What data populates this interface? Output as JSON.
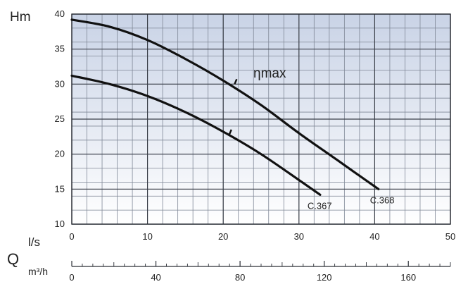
{
  "chart_data": {
    "type": "line",
    "ylabel": "Hm",
    "x_unit_primary": "l/s",
    "x_quantity_symbol": "Q",
    "x_unit_secondary": "m³/h",
    "efficiency_label": "ηmax",
    "xlim": [
      0,
      50
    ],
    "ylim": [
      10,
      40
    ],
    "x2lim": [
      0,
      180
    ],
    "x_ticks": [
      0,
      10,
      20,
      30,
      40,
      50
    ],
    "y_ticks": [
      10,
      15,
      20,
      25,
      30,
      35,
      40
    ],
    "x2_ticks": [
      0,
      40,
      80,
      120,
      160
    ],
    "grid": true,
    "background_gradient": [
      "#c9d3e6",
      "#ffffff"
    ],
    "series": [
      {
        "name": "C.368",
        "x": [
          0,
          5,
          10,
          15,
          20,
          25,
          30,
          35,
          40.5
        ],
        "y": [
          39.2,
          38.2,
          36.3,
          33.6,
          30.5,
          27.0,
          23.0,
          19.2,
          15.0
        ],
        "eta_max": {
          "x": 21.5,
          "y": 30.0
        }
      },
      {
        "name": "C.367",
        "x": [
          0,
          5,
          10,
          15,
          20,
          25,
          30,
          32.8
        ],
        "y": [
          31.2,
          30.0,
          28.3,
          26.0,
          23.2,
          20.0,
          16.3,
          14.2
        ],
        "eta_max": {
          "x": 20.8,
          "y": 22.8
        }
      }
    ]
  }
}
